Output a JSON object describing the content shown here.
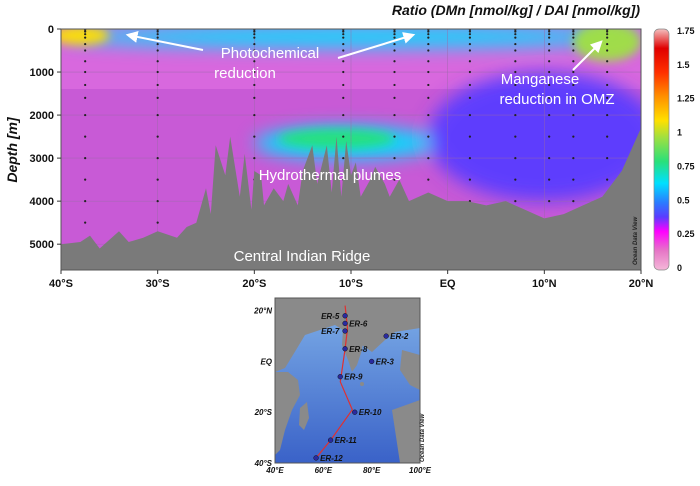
{
  "chart_data": {
    "type": "heatmap",
    "title": "Ratio (DMn [nmol/kg] / DAl [nmol/kg])",
    "ylabel": "Depth [m]",
    "x_ticks": [
      "40°S",
      "30°S",
      "20°S",
      "10°S",
      "EQ",
      "10°N",
      "20°N"
    ],
    "x_range_lat": [
      -40,
      20
    ],
    "y_ticks": [
      "0",
      "1000",
      "2000",
      "3000",
      "4000",
      "5000"
    ],
    "y_range_depth": [
      0,
      5600
    ],
    "colorbar": {
      "ticks": [
        "1.75",
        "1.5",
        "1.25",
        "1",
        "0.75",
        "0.5",
        "0.25",
        "0"
      ],
      "range": [
        0,
        1.75
      ],
      "colors": [
        "#f4b8d8",
        "#e676c6",
        "#ff00ff",
        "#5a3cff",
        "#2a7cff",
        "#00e0ff",
        "#29e07a",
        "#a0e040",
        "#ffe000",
        "#ff9000",
        "#ff3000",
        "#e00000",
        "#f4c0c0"
      ]
    },
    "annotations": [
      "Photochemical",
      "reduction",
      "Manganese",
      "reduction in OMZ",
      "Hydrothermal plumes",
      "Central Indian Ridge"
    ],
    "watermark": "Ocean Data View",
    "station_lats": [
      -37.5,
      -30,
      -20,
      -10.8,
      -5.5,
      -2,
      2.3,
      7,
      10.5,
      13,
      16.5
    ],
    "bathymetry": [
      [
        -40,
        5000
      ],
      [
        -38,
        4950
      ],
      [
        -37,
        4800
      ],
      [
        -36,
        5100
      ],
      [
        -35,
        4900
      ],
      [
        -34,
        4700
      ],
      [
        -33,
        4950
      ],
      [
        -31.5,
        4850
      ],
      [
        -30,
        4700
      ],
      [
        -28,
        4850
      ],
      [
        -27,
        4600
      ],
      [
        -26,
        4500
      ],
      [
        -25,
        3700
      ],
      [
        -24.5,
        4300
      ],
      [
        -24,
        2700
      ],
      [
        -23,
        3400
      ],
      [
        -22.5,
        2500
      ],
      [
        -21.5,
        3900
      ],
      [
        -21,
        2900
      ],
      [
        -20.3,
        4200
      ],
      [
        -20,
        3300
      ],
      [
        -19.3,
        3400
      ],
      [
        -19,
        4100
      ],
      [
        -18,
        3700
      ],
      [
        -17,
        4000
      ],
      [
        -16.5,
        3600
      ],
      [
        -15.5,
        4100
      ],
      [
        -15,
        3300
      ],
      [
        -14,
        2700
      ],
      [
        -13.5,
        3600
      ],
      [
        -12.5,
        2700
      ],
      [
        -12,
        3800
      ],
      [
        -11.5,
        2500
      ],
      [
        -11,
        3900
      ],
      [
        -10.5,
        2600
      ],
      [
        -10,
        3400
      ],
      [
        -9.5,
        3100
      ],
      [
        -9,
        3900
      ],
      [
        -8,
        3500
      ],
      [
        -7.5,
        3200
      ],
      [
        -6.5,
        3600
      ],
      [
        -6,
        3900
      ],
      [
        -5,
        3500
      ],
      [
        -4,
        4000
      ],
      [
        -2,
        3800
      ],
      [
        0,
        4000
      ],
      [
        2,
        4000
      ],
      [
        4,
        4100
      ],
      [
        6,
        4000
      ],
      [
        8,
        4200
      ],
      [
        10,
        4400
      ],
      [
        12,
        4300
      ],
      [
        14,
        4100
      ],
      [
        16,
        3900
      ],
      [
        18,
        3300
      ],
      [
        20,
        2300
      ]
    ],
    "features": [
      {
        "name": "hydrothermal-plume",
        "lat": -10.5,
        "depth": 2650,
        "rlat": 9.5,
        "rdepth": 380,
        "value": 0.5
      },
      {
        "name": "plume-core",
        "lat": -11.5,
        "depth": 2550,
        "rlat": 6,
        "rdepth": 230,
        "value": 0.7
      },
      {
        "name": "surface-photochemical",
        "lat": -10,
        "depth": 180,
        "rlat": 30,
        "rdepth": 250,
        "value": 0.6
      },
      {
        "name": "surface-south",
        "lat": -38,
        "depth": 150,
        "rlat": 3,
        "rdepth": 220,
        "value": 1.0
      },
      {
        "name": "omz-manganese",
        "lat": 16.5,
        "depth": 300,
        "rlat": 3.5,
        "rdepth": 450,
        "value": 0.9
      },
      {
        "name": "deep-north-low",
        "lat": 10,
        "depth": 2500,
        "rlat": 12,
        "rdepth": 1500,
        "value": 0.3
      }
    ]
  },
  "inset_map": {
    "lat_ticks": [
      "20°N",
      "EQ",
      "20°S",
      "40°S"
    ],
    "lon_ticks": [
      "40°E",
      "60°E",
      "80°E",
      "100°E"
    ],
    "watermark": "Ocean Data View",
    "stations": [
      {
        "label": "ER-5",
        "lon": 69,
        "lat": 18
      },
      {
        "label": "ER-6",
        "lon": 69,
        "lat": 15
      },
      {
        "label": "ER-7",
        "lon": 69,
        "lat": 12
      },
      {
        "label": "ER-2",
        "lon": 86,
        "lat": 10
      },
      {
        "label": "ER-8",
        "lon": 69,
        "lat": 5
      },
      {
        "label": "ER-3",
        "lon": 80,
        "lat": 0
      },
      {
        "label": "ER-9",
        "lon": 67,
        "lat": -6
      },
      {
        "label": "ER-10",
        "lon": 73,
        "lat": -20
      },
      {
        "label": "ER-11",
        "lon": 63,
        "lat": -31
      },
      {
        "label": "ER-12",
        "lon": 57,
        "lat": -38
      }
    ],
    "cruise_track": [
      [
        69,
        22
      ],
      [
        70,
        13
      ],
      [
        69,
        5
      ],
      [
        67,
        -8
      ],
      [
        72,
        -19
      ],
      [
        63,
        -31
      ],
      [
        57,
        -38
      ]
    ]
  }
}
